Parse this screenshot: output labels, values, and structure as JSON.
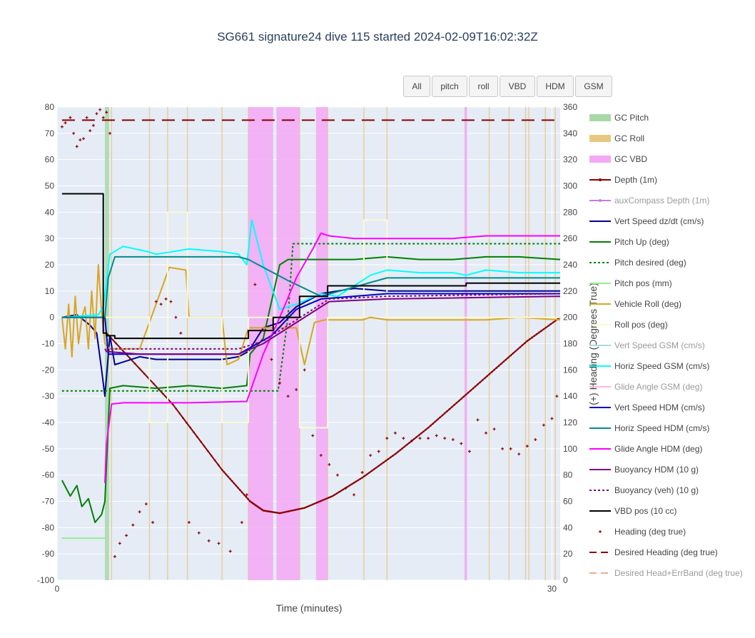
{
  "title": "SG661 signature24 dive 115 started 2024-02-09T16:02:32Z",
  "buttons": [
    "All",
    "pitch",
    "roll",
    "VBD",
    "HDM",
    "GSM"
  ],
  "chart_data": {
    "type": "line",
    "xlabel": "Time (minutes)",
    "ylabel": "",
    "y2label": "(+) Heading (Degrees True)",
    "xlim": [
      0,
      30.5
    ],
    "ylim": [
      -100,
      80
    ],
    "y2lim": [
      0,
      360
    ],
    "xticks": [
      0,
      30
    ],
    "yticks": [
      -100,
      -90,
      -80,
      -70,
      -60,
      -50,
      -40,
      -30,
      -20,
      -10,
      0,
      10,
      20,
      30,
      40,
      50,
      60,
      70,
      80
    ],
    "y2ticks": [
      0,
      20,
      40,
      60,
      80,
      100,
      120,
      140,
      160,
      180,
      200,
      220,
      240,
      260,
      280,
      300,
      320,
      340,
      360
    ],
    "legend_position": "right",
    "legend": [
      {
        "name": "GC Pitch",
        "color": "#a8d8a8",
        "style": "band"
      },
      {
        "name": "GC Roll",
        "color": "#e8c880",
        "style": "band"
      },
      {
        "name": "GC VBD",
        "color": "#f5a8f5",
        "style": "band"
      },
      {
        "name": "Depth (1m)",
        "color": "#8b0000",
        "style": "line-marker"
      },
      {
        "name": "auxCompass Depth (1m)",
        "color": "#c080e0",
        "style": "line-marker",
        "dim": true
      },
      {
        "name": "Vert Speed dz/dt (cm/s)",
        "color": "#00008b",
        "style": "line"
      },
      {
        "name": "Pitch Up (deg)",
        "color": "#008000",
        "style": "line"
      },
      {
        "name": "Pitch desired (deg)",
        "color": "#008000",
        "style": "dot"
      },
      {
        "name": "Pitch pos (mm)",
        "color": "#90ee90",
        "style": "line"
      },
      {
        "name": "Vehicle Roll (deg)",
        "color": "#daa520",
        "style": "line"
      },
      {
        "name": "Roll pos (deg)",
        "color": "#fafad2",
        "style": "line"
      },
      {
        "name": "Vert Speed GSM (cm/s)",
        "color": "#add8e6",
        "style": "line",
        "dim": true
      },
      {
        "name": "Horiz Speed GSM (cm/s)",
        "color": "#00ffff",
        "style": "line"
      },
      {
        "name": "Glide Angle GSM (deg)",
        "color": "#ffb6e6",
        "style": "line",
        "dim": true
      },
      {
        "name": "Vert Speed HDM (cm/s)",
        "color": "#0000cd",
        "style": "line"
      },
      {
        "name": "Horiz Speed HDM (cm/s)",
        "color": "#008b8b",
        "style": "line"
      },
      {
        "name": "Glide Angle HDM (deg)",
        "color": "#ff00ff",
        "style": "line"
      },
      {
        "name": "Buoyancy HDM (10 g)",
        "color": "#800080",
        "style": "line"
      },
      {
        "name": "Buoyancy (veh) (10 g)",
        "color": "#800080",
        "style": "dot"
      },
      {
        "name": "VBD pos (10 cc)",
        "color": "#000000",
        "style": "line"
      },
      {
        "name": "Heading (deg true)",
        "color": "#8b0000",
        "style": "marker"
      },
      {
        "name": "Desired Heading (deg true)",
        "color": "#8b0000",
        "style": "dash"
      },
      {
        "name": "Desired Head+ErrBand (deg true)",
        "color": "#e8b090",
        "style": "dash",
        "dim": true
      }
    ],
    "bands": [
      {
        "kind": "GC Pitch",
        "x0": 2.9,
        "x1": 3.15
      },
      {
        "kind": "GC VBD",
        "x0": 11.6,
        "x1": 13.1
      },
      {
        "kind": "GC VBD",
        "x0": 13.3,
        "x1": 14.7
      },
      {
        "kind": "GC VBD",
        "x0": 15.7,
        "x1": 16.4
      },
      {
        "kind": "GC VBD",
        "x0": 24.7,
        "x1": 24.85
      }
    ],
    "roll_lines": [
      3.3,
      5.6,
      6.7,
      7.9,
      10.0,
      11.6,
      14.7,
      16.4,
      18.6,
      20.0,
      24.8,
      26.2,
      27.4,
      28.4,
      28.6,
      29.6,
      30.2
    ],
    "series": [
      {
        "name": "Depth (1m)",
        "color": "#8b0000",
        "x": [
          3.0,
          7.0,
          10.0,
          11.7,
          12.5,
          13.5,
          15.0,
          16.7,
          18.5,
          20.5,
          22.5,
          24.5,
          26.5,
          28.5,
          30.5
        ],
        "y": [
          -6,
          -33,
          -58,
          -70,
          -73.5,
          -74.5,
          -72.5,
          -68,
          -61,
          -52,
          -42,
          -31,
          -20,
          -9,
          0
        ]
      },
      {
        "name": "Vert Speed dz/dt (cm/s)",
        "color": "#00008b",
        "x": [
          0.3,
          1.2,
          2.0,
          2.4,
          2.7,
          2.9,
          3.2,
          3.5,
          4.0,
          5.0,
          6.0,
          8.0,
          10.0,
          11.0,
          11.6,
          12.5,
          13.5,
          14.5,
          16.0,
          18.0,
          20.0,
          22.0,
          24.0,
          26.0,
          28.0,
          30.5
        ],
        "y": [
          0,
          1,
          -3,
          -6,
          -20,
          -30,
          -7,
          -18,
          -17,
          -15,
          -16,
          -16,
          -16,
          -15,
          -13,
          -4,
          -2,
          4,
          9,
          11,
          10,
          10,
          10,
          10,
          10,
          10
        ]
      },
      {
        "name": "Pitch Up (deg)",
        "color": "#008000",
        "x": [
          0.3,
          0.8,
          1.2,
          1.5,
          1.9,
          2.3,
          2.7,
          2.9,
          3.2,
          4.0,
          6.0,
          8.0,
          10.0,
          11.5,
          11.7,
          12.5,
          13.5,
          14.0,
          15.5,
          18.0,
          20.0,
          22.0,
          24.0,
          26.0,
          28.0,
          30.5
        ],
        "y": [
          -62,
          -68,
          -64,
          -72,
          -69,
          -78,
          -75,
          -70,
          -27,
          -26,
          -27,
          -26,
          -27,
          -26,
          -14,
          -8,
          20,
          22,
          22,
          22,
          23,
          22,
          22,
          23,
          23,
          22
        ]
      },
      {
        "name": "Pitch desired (deg)",
        "color": "#008000",
        "dash": "3,3",
        "x": [
          0.3,
          13.4,
          14.0,
          14.3,
          30.5
        ],
        "y": [
          -28,
          -28,
          0,
          28,
          28
        ]
      },
      {
        "name": "Pitch pos (mm)",
        "color": "#90ee90",
        "x": [
          0.3,
          2.9
        ],
        "y": [
          -84,
          -84
        ]
      },
      {
        "name": "Vehicle Roll (deg)",
        "color": "#daa520",
        "x": [
          0.3,
          0.5,
          0.7,
          0.9,
          1.1,
          1.3,
          1.5,
          1.7,
          1.9,
          2.1,
          2.3,
          2.5,
          2.7,
          2.9,
          3.2,
          4.0,
          5.0,
          5.6,
          6.8,
          7.8,
          8.0,
          10.0,
          10.3,
          11.0,
          11.6,
          14.5,
          15.0,
          15.6,
          16.2,
          18.5,
          19.0,
          20.0,
          24.5,
          26.0,
          28.0,
          30.5
        ],
        "y": [
          0,
          -12,
          5,
          -15,
          8,
          -10,
          0,
          4,
          -12,
          10,
          -8,
          20,
          2,
          -10,
          -12,
          -12,
          -12,
          -2,
          19,
          18,
          0,
          0,
          -18,
          -16,
          -4,
          -4,
          -18,
          -2,
          -1,
          -1,
          0,
          -1,
          -1,
          -1,
          0,
          -1
        ]
      },
      {
        "name": "Roll pos (deg)",
        "color": "#fafad2",
        "x": [
          0.3,
          5.6,
          5.6,
          6.7,
          6.7,
          7.9,
          7.9,
          10.0,
          10.0,
          11.6,
          11.6,
          14.7,
          14.7,
          16.4,
          16.4,
          18.6,
          18.6,
          20.0,
          20.0,
          30.5
        ],
        "y": [
          0,
          0,
          -40,
          -40,
          40,
          40,
          0,
          0,
          -40,
          -40,
          0,
          0,
          -42,
          -42,
          0,
          0,
          37,
          37,
          0,
          0
        ]
      },
      {
        "name": "Horiz Speed GSM (cm/s)",
        "color": "#00ffff",
        "x": [
          0.3,
          2.5,
          2.8,
          3.2,
          4.0,
          5.5,
          6.0,
          8.0,
          10.0,
          11.0,
          11.5,
          11.8,
          12.5,
          13.5,
          14.5,
          16.0,
          17.0,
          18.5,
          19.0,
          20.0,
          22.0,
          24.0,
          24.8,
          26.0,
          28.0,
          30.5
        ],
        "y": [
          0,
          1,
          4,
          24,
          27,
          25,
          24,
          26,
          25,
          24,
          20,
          37,
          20,
          3,
          5,
          9,
          8,
          14,
          16,
          18,
          17,
          17,
          16,
          18,
          17,
          17
        ]
      },
      {
        "name": "Vert Speed HDM (cm/s)",
        "color": "#0000cd",
        "x": [
          0.3,
          2.9,
          3.1,
          5.0,
          11.0,
          13.0,
          14.5,
          16.0,
          20.0,
          30.5
        ],
        "y": [
          0,
          0,
          -14,
          -14,
          -14,
          -7,
          3,
          7,
          9,
          9
        ]
      },
      {
        "name": "Horiz Speed HDM (cm/s)",
        "color": "#008b8b",
        "x": [
          0.3,
          2.9,
          3.1,
          3.5,
          11.0,
          11.6,
          14.0,
          16.0,
          20.0,
          30.5
        ],
        "y": [
          0,
          0,
          15,
          23,
          23,
          22,
          14,
          8,
          15,
          15
        ]
      },
      {
        "name": "Glide Angle HDM (deg)",
        "color": "#ff00ff",
        "x": [
          2.9,
          3.0,
          3.3,
          4.0,
          8.0,
          11.5,
          12.5,
          13.5,
          14.5,
          15.5,
          16.0,
          16.5,
          18.0,
          20.0,
          22.0,
          24.0,
          26.0,
          28.0,
          30.5
        ],
        "y": [
          -63,
          -48,
          -33,
          -32.5,
          -32.5,
          -32,
          -14,
          0,
          15,
          26,
          32,
          31,
          30,
          30,
          30,
          30,
          31,
          31,
          31
        ]
      },
      {
        "name": "Buoyancy HDM (10 g)",
        "color": "#800080",
        "x": [
          2.9,
          3.0,
          5.0,
          11.0,
          12.5,
          14.5,
          16.5,
          20.0,
          30.5
        ],
        "y": [
          -12,
          -13,
          -14,
          -14,
          -10,
          -2,
          6,
          7,
          8
        ]
      },
      {
        "name": "Buoyancy (veh) (10 g)",
        "color": "#800080",
        "dash": "3,3",
        "x": [
          3.0,
          5.0,
          11.0,
          12.5,
          14.5,
          16.5,
          20.0,
          30.5
        ],
        "y": [
          -12,
          -12,
          -12,
          -9,
          -1,
          7,
          8,
          9
        ]
      },
      {
        "name": "VBD pos (10 cc)",
        "color": "#000000",
        "x": [
          0.3,
          2.8,
          2.8,
          3.0,
          3.0,
          3.5,
          3.5,
          11.6,
          11.6,
          13.1,
          13.1,
          14.7,
          14.7,
          16.4,
          16.4,
          24.8,
          24.8,
          30.5
        ],
        "y": [
          47,
          47,
          -6,
          -6,
          -7,
          -7,
          -8,
          -8,
          -5,
          -5,
          0,
          0,
          8,
          8,
          12,
          12,
          13,
          13
        ]
      },
      {
        "name": "Desired Heading (deg true)",
        "color": "#8b0000",
        "dash": "18,10",
        "axis": "y2",
        "x": [
          0.3,
          30.5
        ],
        "y": [
          350,
          350
        ]
      }
    ],
    "heading_points": [
      [
        0.3,
        345
      ],
      [
        0.5,
        348
      ],
      [
        0.8,
        352
      ],
      [
        1.0,
        340
      ],
      [
        1.2,
        330
      ],
      [
        1.4,
        335
      ],
      [
        1.6,
        336
      ],
      [
        1.8,
        352
      ],
      [
        2.0,
        342
      ],
      [
        2.2,
        346
      ],
      [
        2.4,
        355
      ],
      [
        2.6,
        358
      ],
      [
        2.8,
        352
      ],
      [
        3.0,
        356
      ],
      [
        3.2,
        340
      ],
      [
        3.5,
        18
      ],
      [
        3.8,
        28
      ],
      [
        4.2,
        34
      ],
      [
        4.6,
        42
      ],
      [
        5.0,
        52
      ],
      [
        5.4,
        58
      ],
      [
        5.8,
        44
      ],
      [
        6.0,
        212
      ],
      [
        6.3,
        210
      ],
      [
        6.6,
        214
      ],
      [
        6.9,
        212
      ],
      [
        7.2,
        200
      ],
      [
        7.5,
        188
      ],
      [
        8.0,
        44
      ],
      [
        8.6,
        36
      ],
      [
        9.2,
        30
      ],
      [
        9.8,
        28
      ],
      [
        10.5,
        22
      ],
      [
        11.2,
        44
      ],
      [
        11.5,
        65
      ],
      [
        12.0,
        225
      ],
      [
        12.5,
        190
      ],
      [
        13.0,
        168
      ],
      [
        13.5,
        150
      ],
      [
        14.0,
        140
      ],
      [
        14.5,
        145
      ],
      [
        15.0,
        160
      ],
      [
        15.5,
        110
      ],
      [
        16.0,
        95
      ],
      [
        16.5,
        88
      ],
      [
        17.0,
        80
      ],
      [
        17.5,
        70
      ],
      [
        18.0,
        65
      ],
      [
        18.5,
        82
      ],
      [
        19.0,
        95
      ],
      [
        19.5,
        98
      ],
      [
        20.0,
        108
      ],
      [
        20.5,
        112
      ],
      [
        21.0,
        108
      ],
      [
        21.5,
        106
      ],
      [
        22.0,
        108
      ],
      [
        22.5,
        108
      ],
      [
        23.0,
        110
      ],
      [
        23.5,
        108
      ],
      [
        24.0,
        107
      ],
      [
        24.5,
        104
      ],
      [
        25.0,
        98
      ],
      [
        25.5,
        122
      ],
      [
        26.0,
        112
      ],
      [
        26.5,
        115
      ],
      [
        27.0,
        100
      ],
      [
        27.5,
        100
      ],
      [
        28.0,
        96
      ],
      [
        28.5,
        102
      ],
      [
        29.0,
        107
      ],
      [
        29.5,
        118
      ],
      [
        30.0,
        123
      ],
      [
        30.3,
        140
      ]
    ]
  }
}
